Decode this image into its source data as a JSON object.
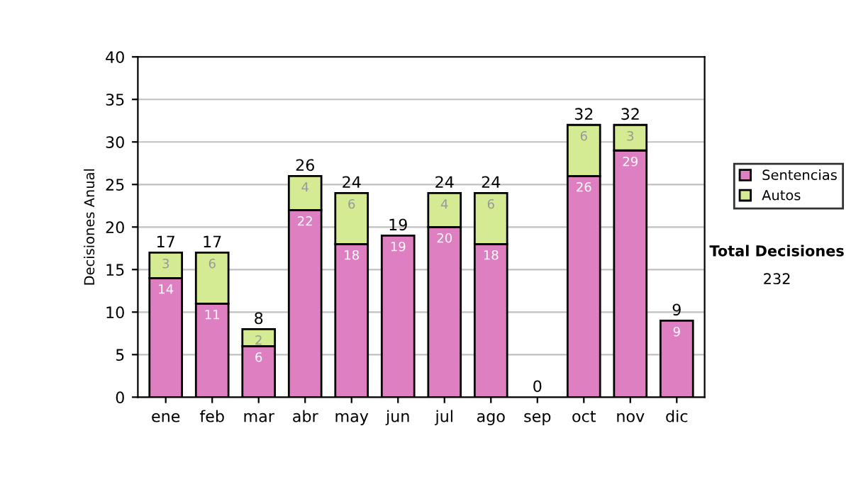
{
  "chart_data": {
    "type": "bar",
    "stacked": true,
    "ylabel": "Decisiones Anual",
    "categories": [
      "ene",
      "feb",
      "mar",
      "abr",
      "may",
      "jun",
      "jul",
      "ago",
      "sep",
      "oct",
      "nov",
      "dic"
    ],
    "series": [
      {
        "name": "Sentencias",
        "color": "#dd7fc0",
        "values": [
          14,
          11,
          6,
          22,
          18,
          19,
          20,
          18,
          0,
          26,
          29,
          9
        ],
        "value_labels": [
          "14",
          "11",
          "6",
          "22",
          "18",
          "19",
          "20",
          "18",
          null,
          "26",
          "29",
          "9"
        ]
      },
      {
        "name": "Autos",
        "color": "#d4ea93",
        "values": [
          3,
          6,
          2,
          4,
          6,
          0,
          4,
          6,
          0,
          6,
          3,
          0
        ],
        "value_labels": [
          "3",
          "6",
          "2",
          "4",
          "6",
          null,
          "4",
          "6",
          null,
          "6",
          "3",
          null
        ]
      }
    ],
    "totals": [
      "17",
      "17",
      "8",
      "26",
      "24",
      "19",
      "24",
      "24",
      "0",
      "32",
      "32",
      "9"
    ],
    "ylim": [
      0,
      40
    ],
    "yticks": [
      0,
      5,
      10,
      15,
      20,
      25,
      30,
      35,
      40
    ],
    "grid": "y",
    "legend": "right",
    "annotations": [
      "Total Decisiones",
      "232"
    ]
  }
}
